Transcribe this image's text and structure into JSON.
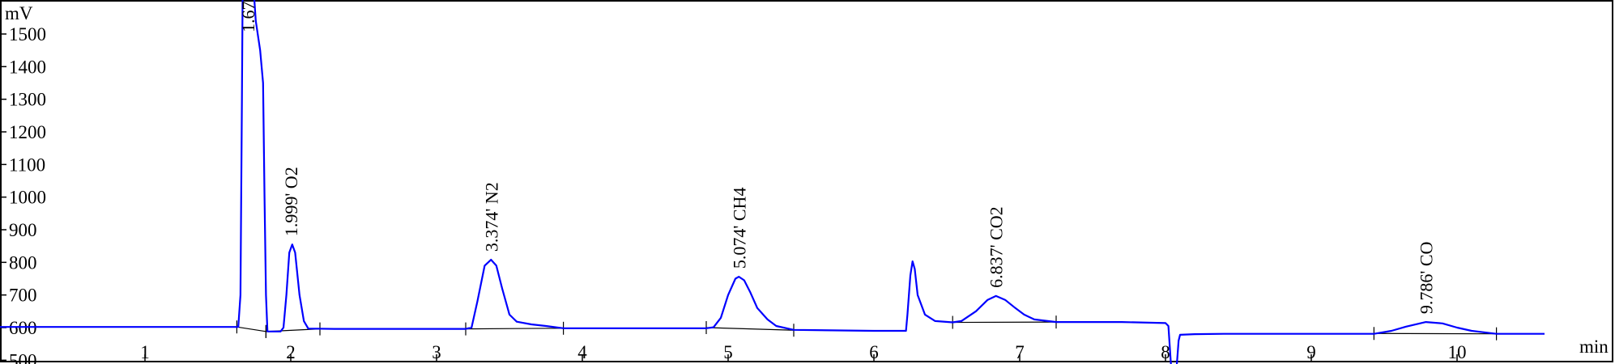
{
  "chart_data": {
    "type": "line",
    "xlabel": "min",
    "ylabel": "mV",
    "xlim": [
      0,
      10.55
    ],
    "ylim": [
      493,
      1605
    ],
    "x_ticks": [
      "1",
      "2",
      "3",
      "4",
      "5",
      "6",
      "7",
      "8",
      "9",
      "10"
    ],
    "y_ticks": [
      "500",
      "600",
      "700",
      "800",
      "900",
      "1000",
      "1100",
      "1200",
      "1300",
      "1400",
      "1500"
    ],
    "grid": false,
    "series_color": "#0000ff",
    "trace": [
      [
        0,
        602
      ],
      [
        1.64,
        602
      ],
      [
        1.655,
        700
      ],
      [
        1.665,
        1300
      ],
      [
        1.67,
        1640
      ],
      [
        1.745,
        1640
      ],
      [
        1.76,
        1540
      ],
      [
        1.79,
        1450
      ],
      [
        1.81,
        1350
      ],
      [
        1.82,
        1000
      ],
      [
        1.83,
        700
      ],
      [
        1.84,
        588
      ],
      [
        1.93,
        588
      ],
      [
        1.95,
        600
      ],
      [
        1.97,
        700
      ],
      [
        1.99,
        830
      ],
      [
        2.01,
        855
      ],
      [
        2.03,
        830
      ],
      [
        2.06,
        700
      ],
      [
        2.09,
        620
      ],
      [
        2.12,
        597
      ],
      [
        2.3,
        596
      ],
      [
        3.2,
        596
      ],
      [
        3.24,
        600
      ],
      [
        3.28,
        680
      ],
      [
        3.33,
        790
      ],
      [
        3.374,
        808
      ],
      [
        3.41,
        790
      ],
      [
        3.45,
        720
      ],
      [
        3.5,
        640
      ],
      [
        3.55,
        618
      ],
      [
        3.65,
        610
      ],
      [
        3.75,
        605
      ],
      [
        3.87,
        598
      ],
      [
        4.85,
        598
      ],
      [
        4.9,
        601
      ],
      [
        4.95,
        630
      ],
      [
        5.0,
        700
      ],
      [
        5.05,
        750
      ],
      [
        5.074,
        756
      ],
      [
        5.11,
        745
      ],
      [
        5.15,
        710
      ],
      [
        5.2,
        660
      ],
      [
        5.27,
        625
      ],
      [
        5.33,
        605
      ],
      [
        5.45,
        593
      ],
      [
        6.0,
        590
      ],
      [
        6.22,
        590
      ],
      [
        6.23,
        640
      ],
      [
        6.25,
        760
      ],
      [
        6.265,
        803
      ],
      [
        6.28,
        780
      ],
      [
        6.3,
        700
      ],
      [
        6.35,
        640
      ],
      [
        6.42,
        620
      ],
      [
        6.54,
        616
      ],
      [
        6.6,
        620
      ],
      [
        6.7,
        650
      ],
      [
        6.78,
        685
      ],
      [
        6.837,
        697
      ],
      [
        6.9,
        685
      ],
      [
        6.97,
        660
      ],
      [
        7.03,
        640
      ],
      [
        7.1,
        625
      ],
      [
        7.25,
        617
      ],
      [
        7.7,
        617
      ],
      [
        8.0,
        614
      ],
      [
        8.02,
        605
      ],
      [
        8.04,
        470
      ],
      [
        8.075,
        470
      ],
      [
        8.09,
        560
      ],
      [
        8.1,
        578
      ],
      [
        8.2,
        580
      ],
      [
        8.4,
        581
      ],
      [
        9.0,
        581
      ],
      [
        9.43,
        581
      ],
      [
        9.55,
        590
      ],
      [
        9.65,
        603
      ],
      [
        9.786,
        617
      ],
      [
        9.9,
        613
      ],
      [
        10.0,
        600
      ],
      [
        10.1,
        590
      ],
      [
        10.27,
        581
      ],
      [
        10.6,
        581
      ]
    ],
    "peaks": [
      {
        "label": "1.67",
        "start": [
          1.63,
          602
        ],
        "end": [
          1.83,
          588
        ]
      },
      {
        "label": "1.999'  O2",
        "rt": 1.999,
        "apex": 855,
        "start": [
          1.83,
          588
        ],
        "end": [
          2.2,
          596
        ]
      },
      {
        "label": "3.374'  N2",
        "rt": 3.374,
        "apex": 808,
        "start": [
          3.2,
          596
        ],
        "end": [
          3.87,
          598
        ]
      },
      {
        "label": "5.074'  CH4",
        "rt": 5.074,
        "apex": 756,
        "start": [
          4.85,
          600
        ],
        "end": [
          5.45,
          592
        ]
      },
      {
        "label": "6.837'  CO2",
        "rt": 6.837,
        "apex": 697,
        "start": [
          6.54,
          616
        ],
        "end": [
          7.25,
          617
        ]
      },
      {
        "label": "9.786'  CO",
        "rt": 9.786,
        "apex": 617,
        "start": [
          9.43,
          582
        ],
        "end": [
          10.27,
          581
        ]
      }
    ]
  }
}
